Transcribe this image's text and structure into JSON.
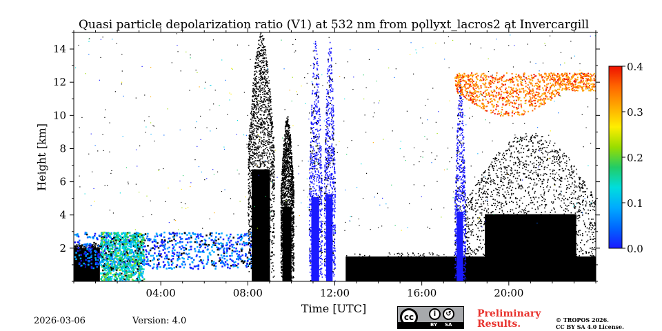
{
  "chart_data": {
    "type": "heatmap",
    "title": "Quasi particle depolarization ratio (V1) at 532 nm from pollyxt_lacros2 at Invercargill",
    "xlabel": "Time [UTC]",
    "ylabel": "Height [km]",
    "xlim": [
      0,
      24
    ],
    "ylim": [
      0,
      15
    ],
    "x_ticks": [
      4,
      8,
      12,
      16,
      20
    ],
    "x_tick_labels": [
      "04:00",
      "08:00",
      "12:00",
      "16:00",
      "20:00"
    ],
    "y_ticks": [
      2,
      4,
      6,
      8,
      10,
      12,
      14
    ],
    "y_tick_labels": [
      "2",
      "4",
      "6",
      "8",
      "10",
      "12",
      "14"
    ],
    "colorbar": {
      "range": [
        0.0,
        0.4
      ],
      "ticks": [
        0.0,
        0.1,
        0.2,
        0.3,
        0.4
      ],
      "tick_labels": [
        "0.0",
        "0.1",
        "0.2",
        "0.3",
        "0.4"
      ],
      "colormap": [
        "#1a1aff",
        "#0066ff",
        "#00aaff",
        "#00dddd",
        "#22cc66",
        "#99dd00",
        "#ffee00",
        "#ffaa00",
        "#ff6600",
        "#ee1100"
      ]
    },
    "features": [
      {
        "kind": "black-block",
        "t0": 0.0,
        "t1": 1.2,
        "h0": 0.0,
        "h1": 2.0
      },
      {
        "kind": "aerosol",
        "t0": 0.0,
        "t1": 8.5,
        "h0": 0.8,
        "h1": 3.0,
        "value": 0.06
      },
      {
        "kind": "aerosol",
        "t0": 1.2,
        "t1": 3.2,
        "h0": 0.0,
        "h1": 3.0,
        "value": 0.15
      },
      {
        "kind": "black-column",
        "t0": 8.0,
        "t1": 9.2,
        "h0": 0.0,
        "h1": 15.0
      },
      {
        "kind": "black-column",
        "t0": 9.5,
        "t1": 10.1,
        "h0": 0.0,
        "h1": 10.0
      },
      {
        "kind": "blue-column",
        "t0": 10.8,
        "t1": 11.4,
        "h0": 0.0,
        "h1": 14.5,
        "value": 0.02
      },
      {
        "kind": "blue-column",
        "t0": 11.5,
        "t1": 12.0,
        "h0": 0.0,
        "h1": 15.0,
        "value": 0.02
      },
      {
        "kind": "black-block",
        "t0": 12.5,
        "t1": 24.0,
        "h0": 0.0,
        "h1": 1.5
      },
      {
        "kind": "blue-column",
        "t0": 17.5,
        "t1": 18.0,
        "h0": 0.0,
        "h1": 12.0,
        "value": 0.03
      },
      {
        "kind": "black-column",
        "t0": 18.0,
        "t1": 24.0,
        "h0": 0.0,
        "h1": 9.0
      },
      {
        "kind": "cirrus",
        "t0": 17.5,
        "t1": 24.0,
        "h0": 9.5,
        "h1": 12.6,
        "value": 0.33
      }
    ]
  },
  "footer": {
    "date": "2026-03-06",
    "version": "Version: 4.0",
    "preliminary_line1": "Preliminary",
    "preliminary_line2": "Results.",
    "copyright_line1": "© TROPOS 2026.",
    "copyright_line2": "CC BY SA 4.0 License."
  },
  "license_badge": {
    "cc": "cc",
    "by": "BY",
    "sa": "SA"
  }
}
